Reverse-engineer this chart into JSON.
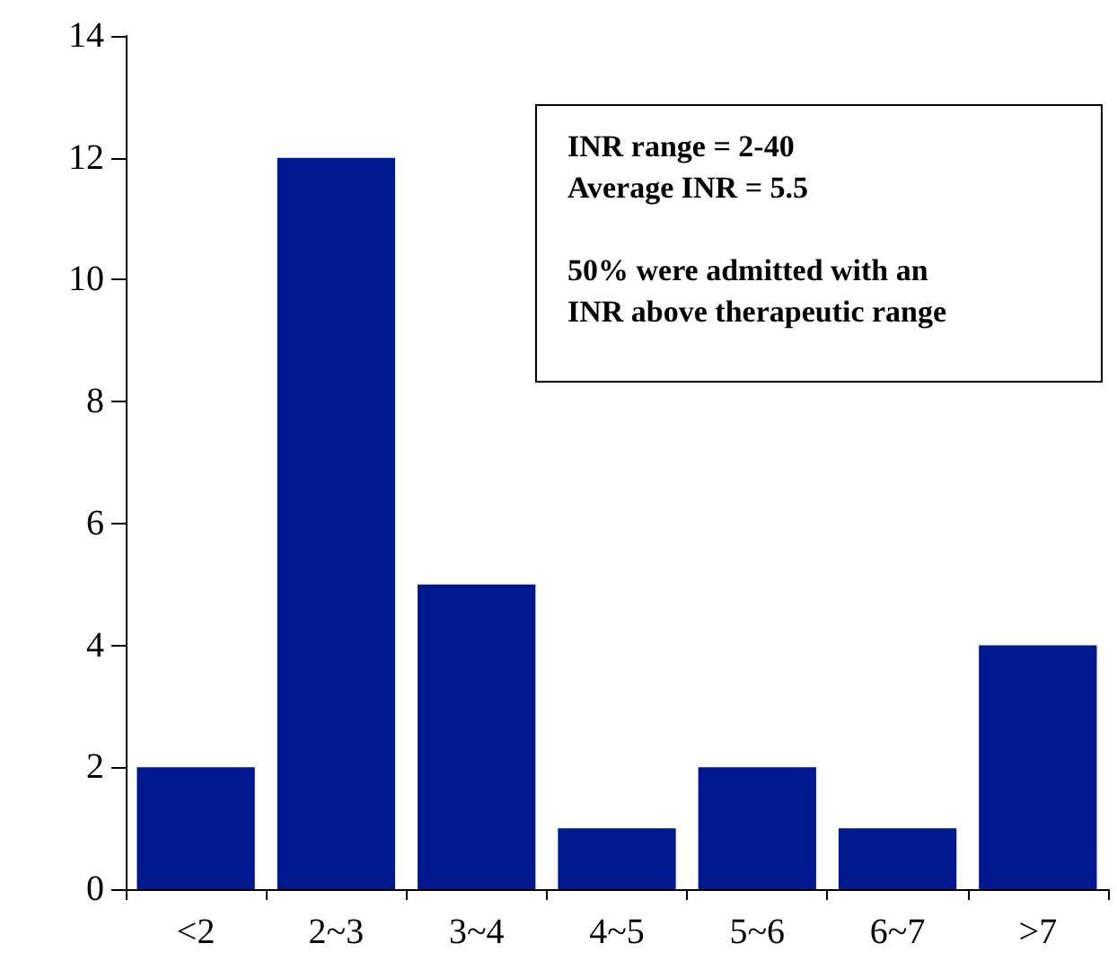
{
  "chart_data": {
    "type": "bar",
    "categories": [
      "<2",
      "2~3",
      "3~4",
      "4~5",
      "5~6",
      "6~7",
      ">7"
    ],
    "values": [
      2,
      12,
      5,
      1,
      2,
      1,
      4
    ],
    "color": "#00188f",
    "ylim": [
      0,
      14
    ],
    "yticks": [
      0,
      2,
      4,
      6,
      8,
      10,
      12,
      14
    ],
    "grid": false,
    "annotations": [
      "INR range = 2-40",
      "Average INR = 5.5",
      "50% were admitted with an\nINR above therapeutic range"
    ]
  }
}
